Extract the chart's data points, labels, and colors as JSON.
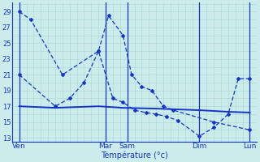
{
  "xlabel": "Température (°c)",
  "ylim": [
    12.5,
    30.2
  ],
  "yticks": [
    13,
    15,
    17,
    19,
    21,
    23,
    25,
    27,
    29
  ],
  "bg_color": "#cbecea",
  "grid_color": "#a8d8d4",
  "line_color": "#1535c8",
  "day_labels": [
    "Ven",
    "Mar",
    "Sam",
    "Dim",
    "Lun"
  ],
  "day_x": [
    0.0,
    6.0,
    7.5,
    12.5,
    16.0
  ],
  "lineA_x": [
    0.0,
    0.8,
    3.0,
    5.5,
    6.2,
    7.2,
    7.8,
    8.5,
    9.2,
    10.0,
    10.7,
    13.5,
    16.0
  ],
  "lineA_y": [
    29.0,
    28.0,
    21.0,
    24.0,
    28.5,
    26.0,
    21.0,
    19.5,
    19.0,
    17.0,
    16.5,
    15.0,
    14.0
  ],
  "lineB_x": [
    0.0,
    2.5,
    3.5,
    4.5,
    5.5,
    6.5,
    7.2,
    8.0,
    8.8,
    9.5,
    10.2,
    11.0,
    12.5,
    13.5,
    14.5,
    15.2,
    16.0
  ],
  "lineB_y": [
    21.0,
    17.0,
    18.0,
    20.0,
    24.0,
    18.0,
    17.5,
    16.5,
    16.2,
    16.0,
    15.7,
    15.2,
    13.2,
    14.3,
    16.0,
    20.5,
    20.5
  ],
  "lineC_x": [
    0.0,
    2.5,
    5.5,
    7.2,
    9.5,
    11.0,
    12.5,
    14.5,
    16.0
  ],
  "lineC_y": [
    17.0,
    16.8,
    17.0,
    16.8,
    16.7,
    16.6,
    16.5,
    16.3,
    16.2
  ]
}
